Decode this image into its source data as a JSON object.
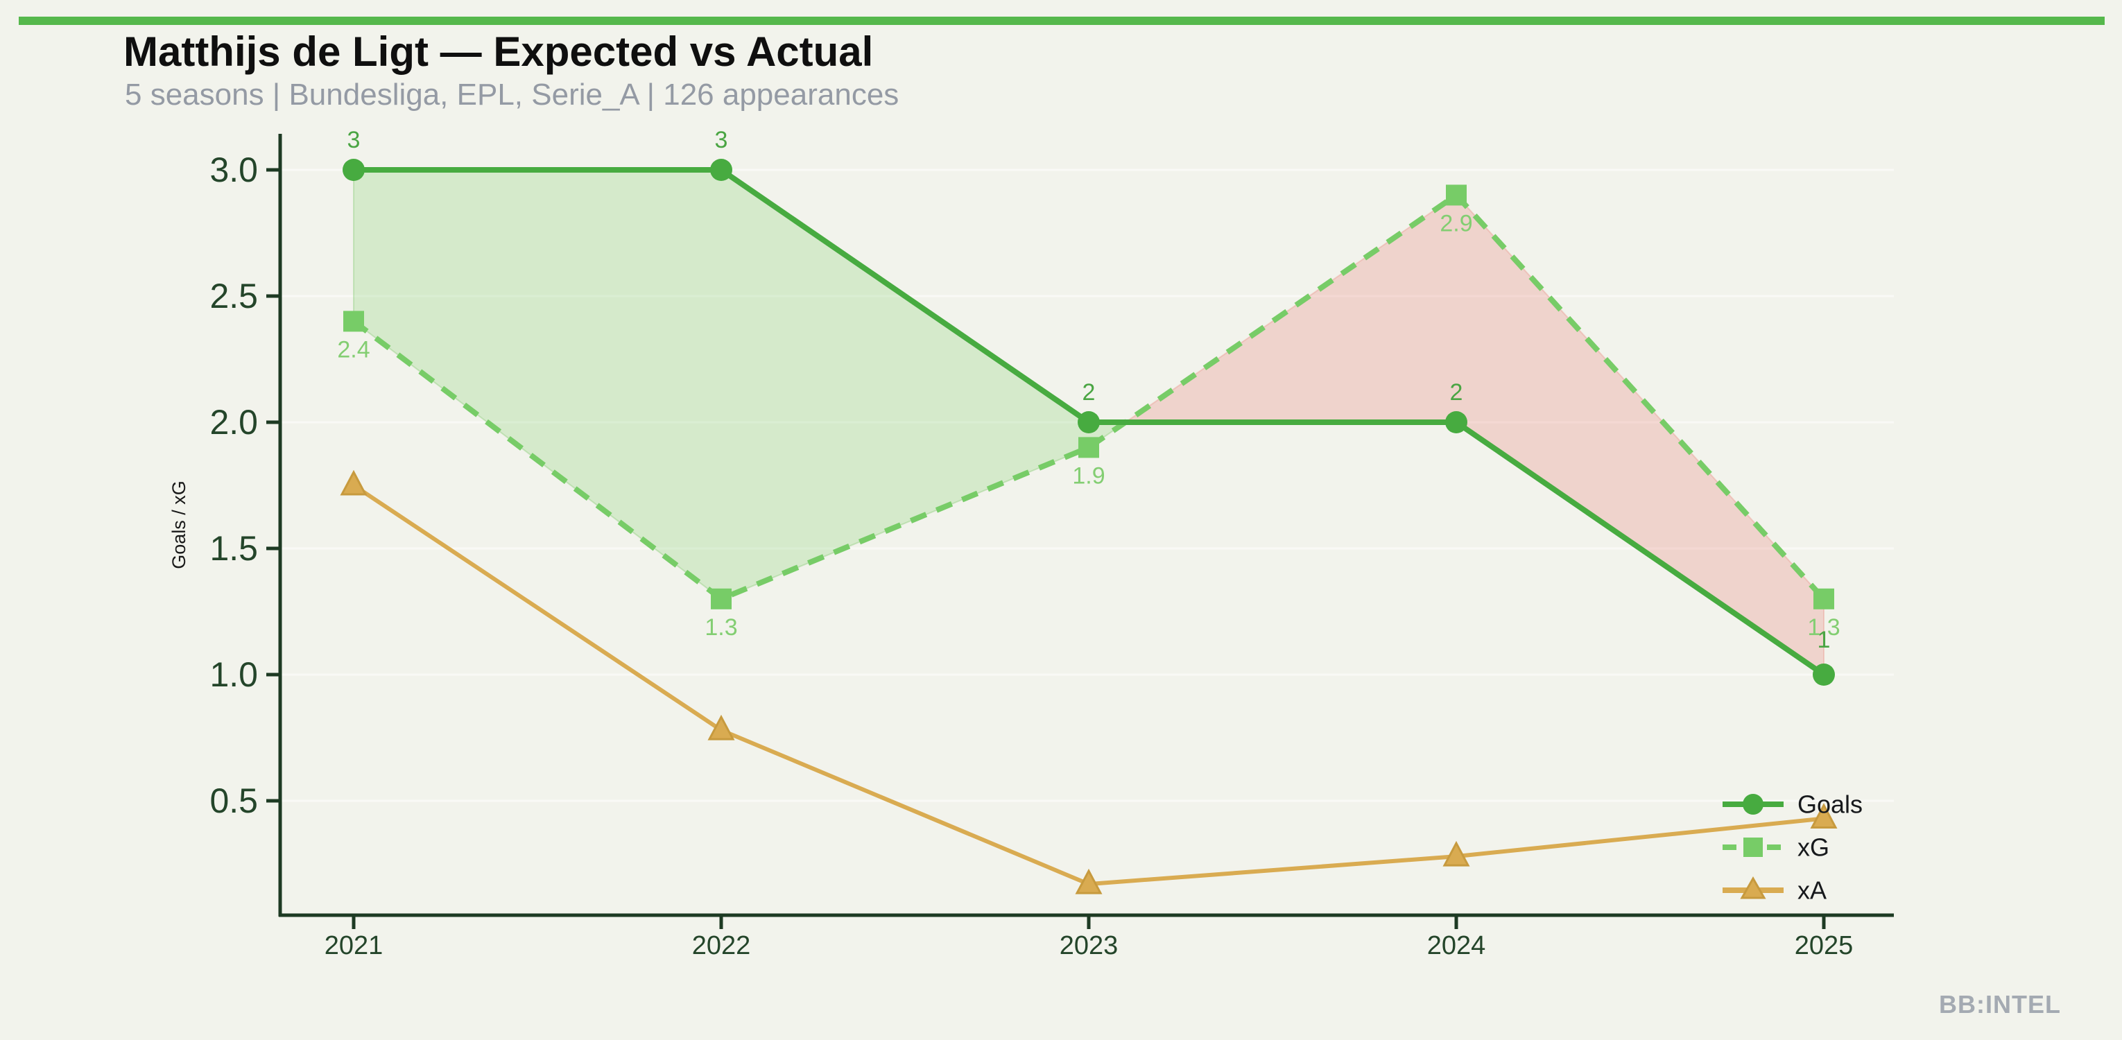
{
  "page": {
    "background_color": "#f2f3ec",
    "accent_bar_color": "#56b84c",
    "watermark": "BB:INTEL"
  },
  "header": {
    "title": "Matthijs de Ligt — Expected vs Actual",
    "subtitle": "5 seasons | Bundesliga, EPL, Serie_A | 126 appearances"
  },
  "chart_data": {
    "type": "line",
    "title": "Matthijs de Ligt — Expected vs Actual",
    "subtitle": "5 seasons | Bundesliga, EPL, Serie_A | 126 appearances",
    "x": [
      "2021",
      "2022",
      "2023",
      "2024",
      "2025"
    ],
    "xlabel": "",
    "ylabel": "Goals / xG",
    "yticks": [
      "0.5",
      "1.0",
      "1.5",
      "2.0",
      "2.5",
      "3.0"
    ],
    "ytick_values": [
      0.5,
      1.0,
      1.5,
      2.0,
      2.5,
      3.0
    ],
    "ylim": [
      0.05,
      3.14
    ],
    "grid": "faint horizontal white gridlines at each y tick",
    "legend_position": "lower right",
    "axis_color": "#1d3a23",
    "tick_label_color": "#24452a",
    "series": [
      {
        "name": "Goals",
        "values": [
          3,
          3,
          2,
          2,
          1
        ],
        "point_labels": [
          "3",
          "3",
          "2",
          "2",
          "1"
        ],
        "color": "#47ab40",
        "label_color": "#4aa543",
        "marker": "circle",
        "line_style": "solid"
      },
      {
        "name": "xG",
        "values": [
          2.4,
          1.3,
          1.9,
          2.9,
          1.3
        ],
        "point_labels": [
          "2.4",
          "1.3",
          "1.9",
          "2.9",
          "1.3"
        ],
        "color": "#77cc67",
        "label_color": "#83ce72",
        "marker": "square",
        "line_style": "dashed"
      },
      {
        "name": "xA",
        "values": [
          1.75,
          0.78,
          0.17,
          0.28,
          0.43
        ],
        "point_labels": [],
        "color": "#d9ab51",
        "marker_edge": "#c79a3e",
        "marker": "triangle-up",
        "line_style": "solid"
      }
    ],
    "fill_between": {
      "above_color": "rgba(120,204,102,0.24)",
      "above_edge": "rgba(130,200,110,0.35)",
      "below_color": "rgba(232,140,128,0.30)",
      "below_edge": "rgba(235,160,150,0.45)",
      "description": "green shading where Goals > xG (2021–2023), pink shading where xG > Goals (2023–2025)"
    }
  }
}
